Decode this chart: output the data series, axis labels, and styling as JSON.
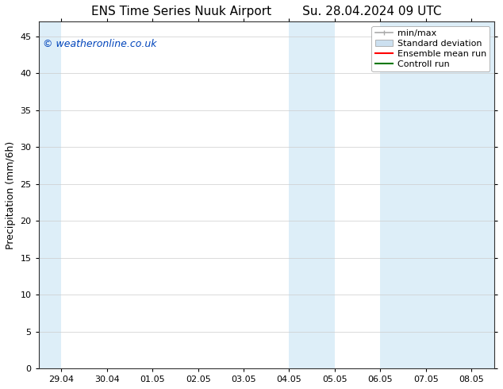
{
  "title_left": "ENS Time Series Nuuk Airport",
  "title_right": "Su. 28.04.2024 09 UTC",
  "ylabel": "Precipitation (mm/6h)",
  "xlabel_ticks": [
    "29.04",
    "30.04",
    "01.05",
    "02.05",
    "03.05",
    "04.05",
    "05.05",
    "06.05",
    "07.05",
    "08.05"
  ],
  "xlim_min": -0.5,
  "xlim_max": 9.5,
  "ylim": [
    0,
    47
  ],
  "yticks": [
    0,
    5,
    10,
    15,
    20,
    25,
    30,
    35,
    40,
    45
  ],
  "background_color": "#ffffff",
  "plot_bg_color": "#ffffff",
  "shaded_columns": [
    {
      "x_start": -0.5,
      "x_end": 0.0,
      "color": "#ddeef8"
    },
    {
      "x_start": 5.0,
      "x_end": 6.0,
      "color": "#ddeef8"
    },
    {
      "x_start": 7.0,
      "x_end": 9.5,
      "color": "#ddeef8"
    }
  ],
  "watermark_text": "© weatheronline.co.uk",
  "watermark_color": "#0044bb",
  "legend_items": [
    {
      "label": "min/max",
      "color": "#aaaaaa",
      "style": "line_with_caps"
    },
    {
      "label": "Standard deviation",
      "color": "#cce0f0",
      "style": "filled_rect"
    },
    {
      "label": "Ensemble mean run",
      "color": "#ff0000",
      "style": "line"
    },
    {
      "label": "Controll run",
      "color": "#007700",
      "style": "line"
    }
  ],
  "title_fontsize": 11,
  "tick_fontsize": 8,
  "ylabel_fontsize": 9,
  "watermark_fontsize": 9,
  "legend_fontsize": 8
}
